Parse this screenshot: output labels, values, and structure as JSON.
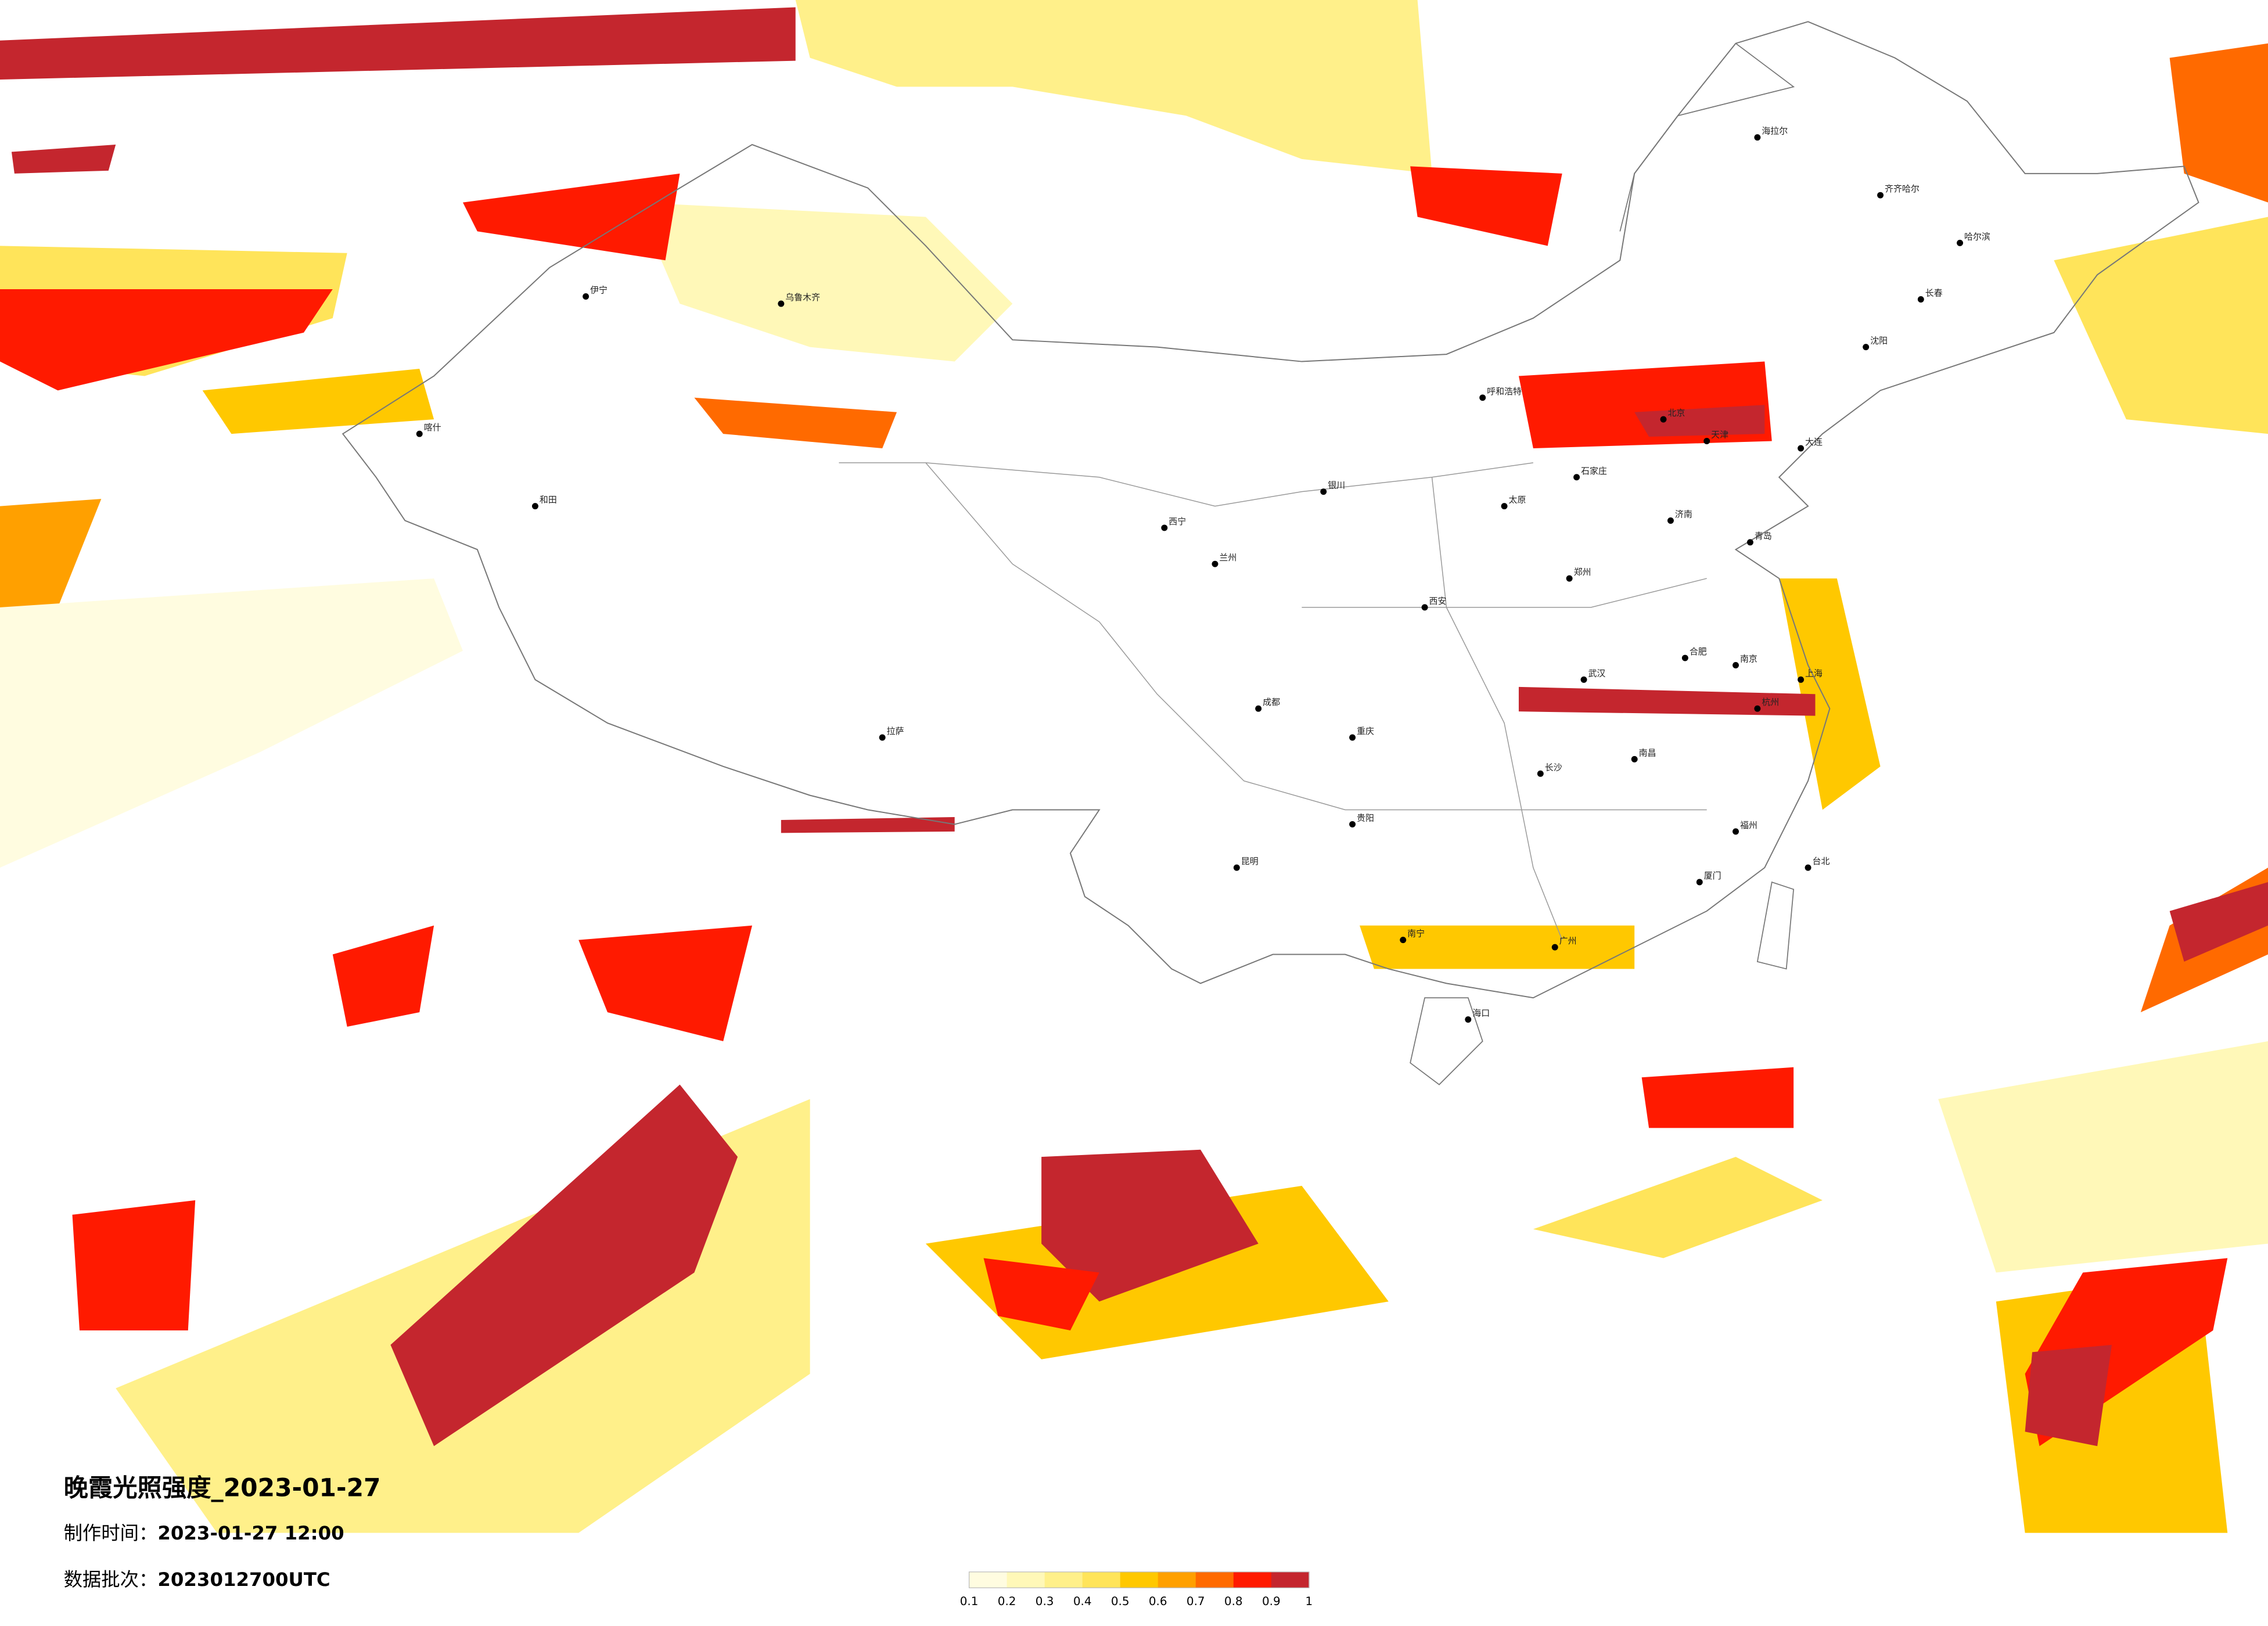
{
  "title": "晚霞光照强度_2023-01-27",
  "production_time_label": "制作时间：",
  "production_time": "2023-01-27 12:00",
  "batch_label": "数据批次：",
  "batch": "2023012700UTC",
  "legend": {
    "ticks": [
      0.1,
      0.2,
      0.3,
      0.4,
      0.5,
      0.6,
      0.7,
      0.8,
      0.9,
      1
    ],
    "colors": [
      "#fffce0",
      "#fff8b8",
      "#fff08a",
      "#ffe45a",
      "#ffc800",
      "#ffa000",
      "#ff6a00",
      "#ff1a00",
      "#c4262e"
    ]
  },
  "cities": [
    "哈尔滨",
    "长春",
    "沈阳",
    "北京",
    "天津",
    "石家庄",
    "太原",
    "呼和浩特",
    "济南",
    "郑州",
    "西安",
    "兰州",
    "西宁",
    "银川",
    "乌鲁木齐",
    "拉萨",
    "成都",
    "重庆",
    "贵阳",
    "昆明",
    "南宁",
    "广州",
    "长沙",
    "武汉",
    "南昌",
    "合肥",
    "南京",
    "上海",
    "杭州",
    "福州",
    "台北",
    "海口",
    "喀什",
    "和田",
    "伊宁",
    "海拉尔",
    "齐齐哈尔",
    "青岛",
    "大连",
    "厦门"
  ]
}
